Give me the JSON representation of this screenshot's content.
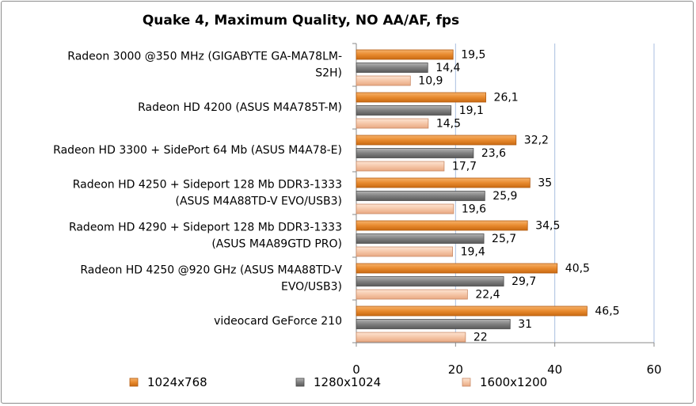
{
  "chart_data": {
    "type": "bar",
    "orientation": "horizontal",
    "title": "Quake 4, Maximum Quality, NO AA/AF, fps",
    "categories": [
      [
        "Radeon 3000 @350 MHz (GIGABYTE GA-MA78LM-",
        "S2H)"
      ],
      [
        "Radeon HD 4200 (ASUS M4A785T-M)"
      ],
      [
        "Radeon HD 3300 + SidePort 64 Mb (ASUS M4A78-E)"
      ],
      [
        "Radeon HD 4250 + Sideport 128 Mb DDR3-1333",
        "(ASUS M4A88TD-V EVO/USB3)"
      ],
      [
        "Radeom HD 4290 + Sideport 128 Mb DDR3-1333",
        "(ASUS M4A89GTD PRO)"
      ],
      [
        "Radeon HD 4250 @920 GHz (ASUS M4A88TD-V",
        "EVO/USB3)"
      ],
      [
        "videocard GeForce 210"
      ]
    ],
    "series": [
      {
        "name": "1024x768",
        "color": "#e88a2e",
        "values": [
          19.5,
          26.1,
          32.2,
          35,
          34.5,
          40.5,
          46.5
        ],
        "labels": [
          "19,5",
          "26,1",
          "32,2",
          "35",
          "34,5",
          "40,5",
          "46,5"
        ]
      },
      {
        "name": "1280x1024",
        "color": "#7f7f7f",
        "values": [
          14.4,
          19.1,
          23.6,
          25.9,
          25.7,
          29.7,
          31
        ],
        "labels": [
          "14,4",
          "19,1",
          "23,6",
          "25,9",
          "25,7",
          "29,7",
          "31"
        ]
      },
      {
        "name": "1600x1200",
        "color": "#f5c7a8",
        "values": [
          10.9,
          14.5,
          17.7,
          19.6,
          19.4,
          22.4,
          22
        ],
        "labels": [
          "10,9",
          "14,5",
          "17,7",
          "19,6",
          "19,4",
          "22,4",
          "22"
        ]
      }
    ],
    "xlim": [
      0,
      60
    ],
    "ticks": [
      "0",
      "20",
      "40",
      "60"
    ],
    "grid": true,
    "legend_position": "bottom"
  }
}
